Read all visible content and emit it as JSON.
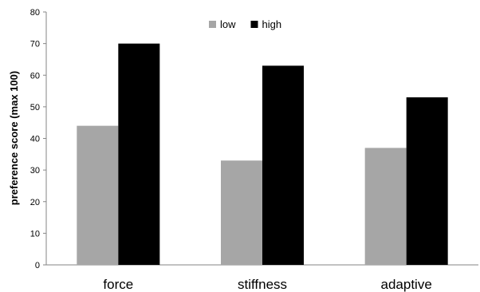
{
  "chart_data": {
    "type": "bar",
    "categories": [
      "force",
      "stiffness",
      "adaptive"
    ],
    "series": [
      {
        "name": "low",
        "values": [
          44,
          33,
          37
        ],
        "color": "#a6a6a6"
      },
      {
        "name": "high",
        "values": [
          70,
          63,
          53
        ],
        "color": "#000000"
      }
    ],
    "ylabel": "preference score (max 100)",
    "ylim": [
      0,
      80
    ],
    "yticks": [
      0,
      10,
      20,
      30,
      40,
      50,
      60,
      70,
      80
    ],
    "grid": false,
    "legend_position": "top-center"
  }
}
